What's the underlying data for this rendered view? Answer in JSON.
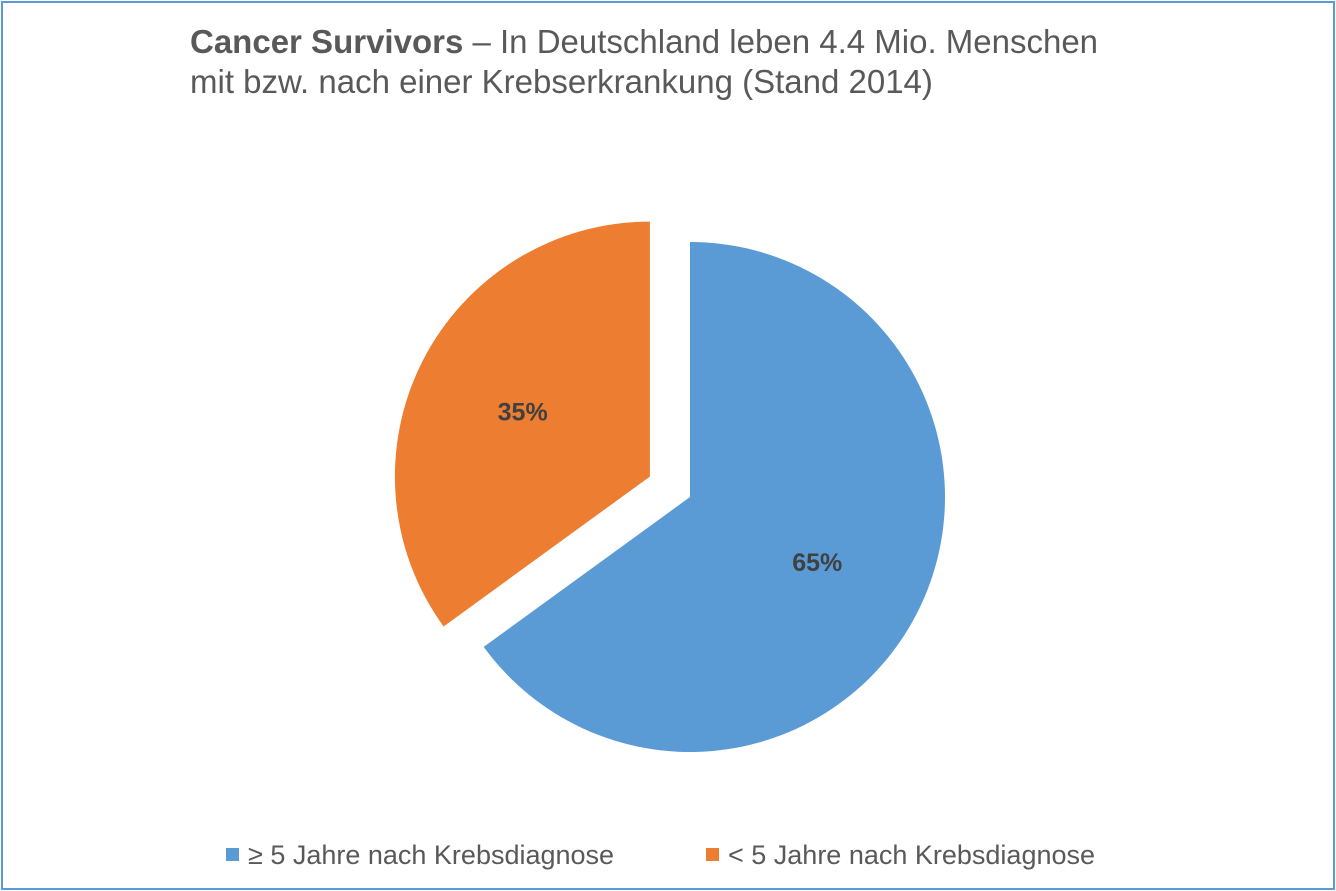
{
  "chart_data": {
    "type": "pie",
    "title_bold": "Cancer Survivors",
    "title_rest": " – In Deutschland leben 4.4 Mio. Menschen",
    "title_line2": "mit bzw. nach einer Krebserkrankung (Stand 2014)",
    "slices": [
      {
        "name": "≥ 5 Jahre nach Krebsdiagnose",
        "value": 65,
        "label": "65%",
        "color": "#5b9bd5",
        "exploded": false
      },
      {
        "name": "< 5 Jahre nach Krebsdiagnose",
        "value": 35,
        "label": "35%",
        "color": "#ed7d31",
        "exploded": true
      }
    ],
    "legend_position": "bottom"
  }
}
